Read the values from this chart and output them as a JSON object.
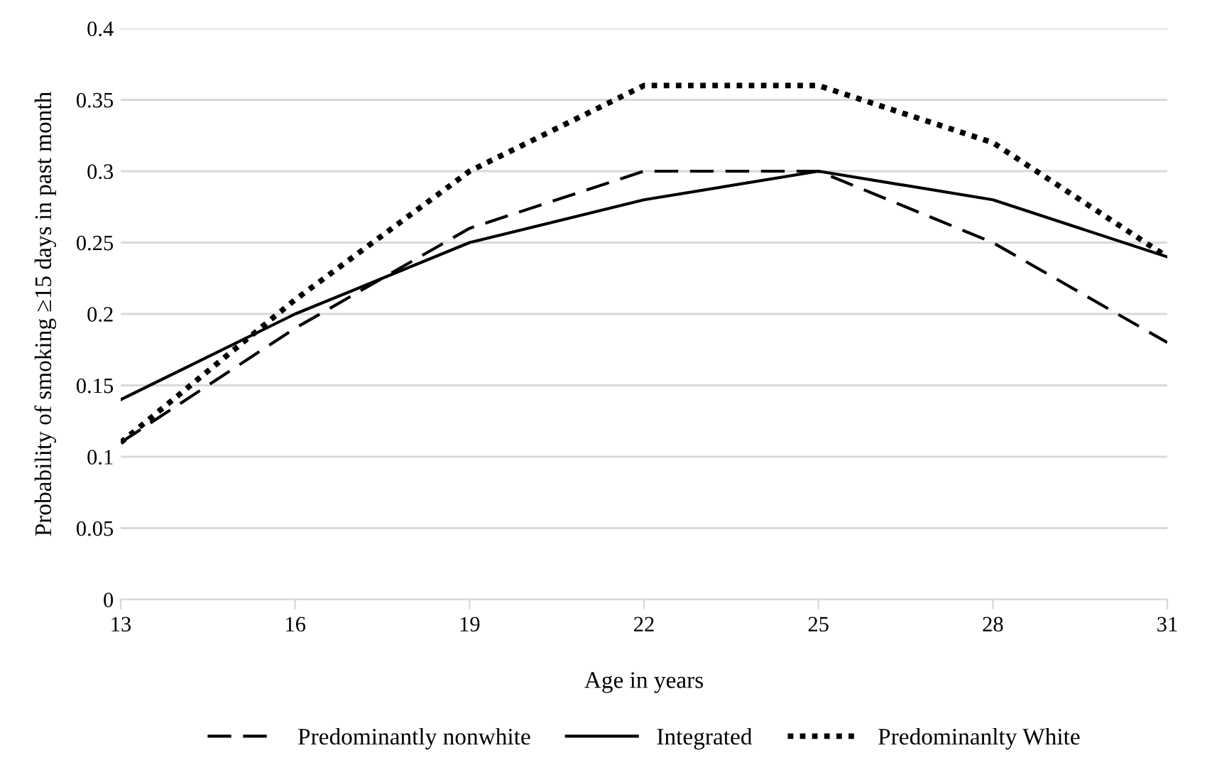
{
  "chart_data": {
    "type": "line",
    "xlabel": "Age in years",
    "ylabel": "Probability of smoking ≥15 days in past month",
    "categories": [
      "13",
      "16",
      "19",
      "22",
      "25",
      "28",
      "31"
    ],
    "series": [
      {
        "name": "Predominantly nonwhite",
        "color": "#000000",
        "line_style": "dashed",
        "values": [
          0.11,
          0.19,
          0.26,
          0.3,
          0.3,
          0.25,
          0.18
        ]
      },
      {
        "name": "Integrated",
        "color": "#000000",
        "line_style": "solid",
        "values": [
          0.14,
          0.2,
          0.25,
          0.28,
          0.3,
          0.28,
          0.24
        ]
      },
      {
        "name": "Predominanlty White",
        "color": "#000000",
        "line_style": "dotted",
        "values": [
          0.11,
          0.21,
          0.3,
          0.36,
          0.36,
          0.32,
          0.24
        ]
      }
    ],
    "ylim": [
      0,
      0.4
    ],
    "yticks": [
      0,
      0.05,
      0.1,
      0.15,
      0.2,
      0.25,
      0.3,
      0.35,
      0.4
    ],
    "grid": "y",
    "legend": "bottom",
    "marker": "none"
  }
}
